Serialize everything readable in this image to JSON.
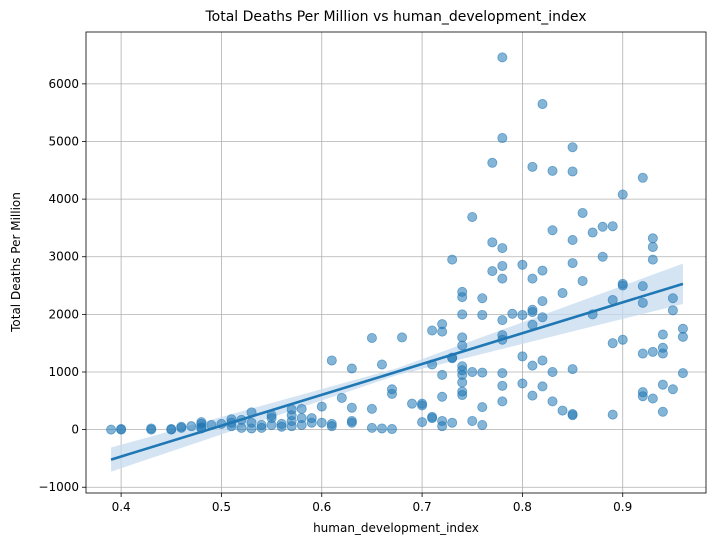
{
  "chart_data": {
    "type": "scatter",
    "title": "Total Deaths Per Million vs human_development_index",
    "xlabel": "human_development_index",
    "ylabel": "Total Deaths Per Million",
    "xlim": [
      0.365,
      0.983
    ],
    "ylim": [
      -1100,
      6900
    ],
    "xticks": [
      0.4,
      0.5,
      0.6,
      0.7,
      0.8,
      0.9
    ],
    "yticks": [
      -1000,
      0,
      1000,
      2000,
      3000,
      4000,
      5000,
      6000
    ],
    "grid": true,
    "point_color": "#1f77b4",
    "line_color": "#1f77b4",
    "band_color": "#c6dbef",
    "regression": {
      "x": [
        0.39,
        0.96
      ],
      "y": [
        -520,
        2530
      ],
      "ci_lower": [
        -730,
        2180
      ],
      "ci_upper": [
        -310,
        2880
      ]
    },
    "points": [
      [
        0.39,
        0
      ],
      [
        0.4,
        10
      ],
      [
        0.4,
        0
      ],
      [
        0.43,
        20
      ],
      [
        0.43,
        0
      ],
      [
        0.45,
        0
      ],
      [
        0.45,
        10
      ],
      [
        0.46,
        50
      ],
      [
        0.46,
        30
      ],
      [
        0.47,
        60
      ],
      [
        0.48,
        100
      ],
      [
        0.48,
        40
      ],
      [
        0.48,
        20
      ],
      [
        0.48,
        130
      ],
      [
        0.49,
        80
      ],
      [
        0.5,
        100
      ],
      [
        0.51,
        180
      ],
      [
        0.51,
        120
      ],
      [
        0.51,
        60
      ],
      [
        0.52,
        170
      ],
      [
        0.52,
        30
      ],
      [
        0.53,
        300
      ],
      [
        0.53,
        120
      ],
      [
        0.53,
        20
      ],
      [
        0.54,
        80
      ],
      [
        0.54,
        30
      ],
      [
        0.55,
        250
      ],
      [
        0.55,
        200
      ],
      [
        0.55,
        80
      ],
      [
        0.56,
        100
      ],
      [
        0.56,
        50
      ],
      [
        0.57,
        350
      ],
      [
        0.57,
        250
      ],
      [
        0.57,
        150
      ],
      [
        0.57,
        60
      ],
      [
        0.58,
        360
      ],
      [
        0.58,
        200
      ],
      [
        0.58,
        80
      ],
      [
        0.59,
        200
      ],
      [
        0.59,
        120
      ],
      [
        0.6,
        400
      ],
      [
        0.6,
        120
      ],
      [
        0.61,
        1200
      ],
      [
        0.61,
        100
      ],
      [
        0.61,
        60
      ],
      [
        0.62,
        550
      ],
      [
        0.63,
        1060
      ],
      [
        0.63,
        380
      ],
      [
        0.63,
        150
      ],
      [
        0.63,
        120
      ],
      [
        0.65,
        1590
      ],
      [
        0.65,
        360
      ],
      [
        0.65,
        30
      ],
      [
        0.66,
        1130
      ],
      [
        0.66,
        20
      ],
      [
        0.67,
        700
      ],
      [
        0.67,
        620
      ],
      [
        0.67,
        10
      ],
      [
        0.68,
        1600
      ],
      [
        0.69,
        450
      ],
      [
        0.7,
        450
      ],
      [
        0.7,
        420
      ],
      [
        0.7,
        130
      ],
      [
        0.71,
        1720
      ],
      [
        0.71,
        1130
      ],
      [
        0.71,
        220
      ],
      [
        0.71,
        200
      ],
      [
        0.72,
        1830
      ],
      [
        0.72,
        1700
      ],
      [
        0.72,
        950
      ],
      [
        0.72,
        570
      ],
      [
        0.72,
        150
      ],
      [
        0.72,
        60
      ],
      [
        0.73,
        2950
      ],
      [
        0.73,
        1250
      ],
      [
        0.73,
        1240
      ],
      [
        0.73,
        120
      ],
      [
        0.74,
        2390
      ],
      [
        0.74,
        2300
      ],
      [
        0.74,
        2000
      ],
      [
        0.74,
        1600
      ],
      [
        0.74,
        1460
      ],
      [
        0.74,
        1100
      ],
      [
        0.74,
        1030
      ],
      [
        0.74,
        950
      ],
      [
        0.74,
        820
      ],
      [
        0.74,
        660
      ],
      [
        0.74,
        600
      ],
      [
        0.75,
        3690
      ],
      [
        0.75,
        1000
      ],
      [
        0.75,
        150
      ],
      [
        0.76,
        2280
      ],
      [
        0.76,
        1990
      ],
      [
        0.76,
        990
      ],
      [
        0.76,
        390
      ],
      [
        0.76,
        80
      ],
      [
        0.77,
        4630
      ],
      [
        0.77,
        3250
      ],
      [
        0.77,
        2750
      ],
      [
        0.78,
        6460
      ],
      [
        0.78,
        5060
      ],
      [
        0.78,
        3150
      ],
      [
        0.78,
        2840
      ],
      [
        0.78,
        2620
      ],
      [
        0.78,
        1900
      ],
      [
        0.78,
        1640
      ],
      [
        0.78,
        1560
      ],
      [
        0.78,
        980
      ],
      [
        0.78,
        760
      ],
      [
        0.78,
        490
      ],
      [
        0.79,
        2010
      ],
      [
        0.8,
        2860
      ],
      [
        0.8,
        1990
      ],
      [
        0.8,
        1270
      ],
      [
        0.8,
        800
      ],
      [
        0.81,
        4560
      ],
      [
        0.81,
        2620
      ],
      [
        0.81,
        2080
      ],
      [
        0.81,
        2040
      ],
      [
        0.81,
        1820
      ],
      [
        0.81,
        1110
      ],
      [
        0.81,
        590
      ],
      [
        0.82,
        5650
      ],
      [
        0.82,
        2760
      ],
      [
        0.82,
        2230
      ],
      [
        0.82,
        1950
      ],
      [
        0.82,
        1200
      ],
      [
        0.82,
        750
      ],
      [
        0.83,
        4490
      ],
      [
        0.83,
        3460
      ],
      [
        0.83,
        1000
      ],
      [
        0.83,
        490
      ],
      [
        0.84,
        2370
      ],
      [
        0.84,
        330
      ],
      [
        0.85,
        4900
      ],
      [
        0.85,
        4480
      ],
      [
        0.85,
        3290
      ],
      [
        0.85,
        2890
      ],
      [
        0.85,
        1050
      ],
      [
        0.85,
        270
      ],
      [
        0.85,
        250
      ],
      [
        0.86,
        3760
      ],
      [
        0.86,
        2580
      ],
      [
        0.87,
        3420
      ],
      [
        0.87,
        2000
      ],
      [
        0.88,
        3520
      ],
      [
        0.88,
        3000
      ],
      [
        0.89,
        3530
      ],
      [
        0.89,
        2250
      ],
      [
        0.89,
        1500
      ],
      [
        0.89,
        260
      ],
      [
        0.9,
        4080
      ],
      [
        0.9,
        2530
      ],
      [
        0.9,
        2500
      ],
      [
        0.9,
        1560
      ],
      [
        0.92,
        4370
      ],
      [
        0.92,
        2490
      ],
      [
        0.92,
        2200
      ],
      [
        0.92,
        1320
      ],
      [
        0.92,
        650
      ],
      [
        0.92,
        580
      ],
      [
        0.93,
        3320
      ],
      [
        0.93,
        3170
      ],
      [
        0.93,
        2950
      ],
      [
        0.93,
        1350
      ],
      [
        0.93,
        540
      ],
      [
        0.94,
        1650
      ],
      [
        0.94,
        1420
      ],
      [
        0.94,
        1320
      ],
      [
        0.94,
        780
      ],
      [
        0.94,
        310
      ],
      [
        0.95,
        2280
      ],
      [
        0.95,
        2070
      ],
      [
        0.95,
        700
      ],
      [
        0.96,
        1750
      ],
      [
        0.96,
        1610
      ],
      [
        0.96,
        980
      ]
    ]
  }
}
